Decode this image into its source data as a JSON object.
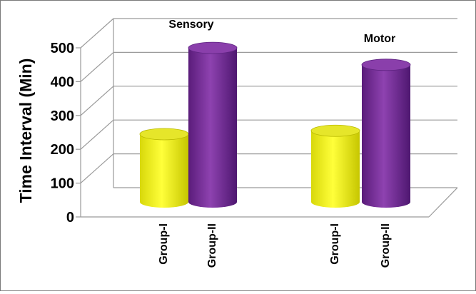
{
  "chart_data": {
    "type": "bar",
    "style": "3d-cylinder",
    "ylabel": "Time Interval (Min)",
    "ylim": [
      0,
      500
    ],
    "yticks": [
      0,
      100,
      200,
      300,
      400,
      500
    ],
    "grid": true,
    "groups": [
      {
        "label": "Sensory",
        "bars": [
          {
            "category": "Group-I",
            "value": 230,
            "color": "#f2f21a"
          },
          {
            "category": "Group-II",
            "value": 485,
            "color": "#7a2e99"
          }
        ]
      },
      {
        "label": "Motor",
        "bars": [
          {
            "category": "Group-I",
            "value": 240,
            "color": "#f2f21a"
          },
          {
            "category": "Group-II",
            "value": 435,
            "color": "#7a2e99"
          }
        ]
      }
    ]
  }
}
